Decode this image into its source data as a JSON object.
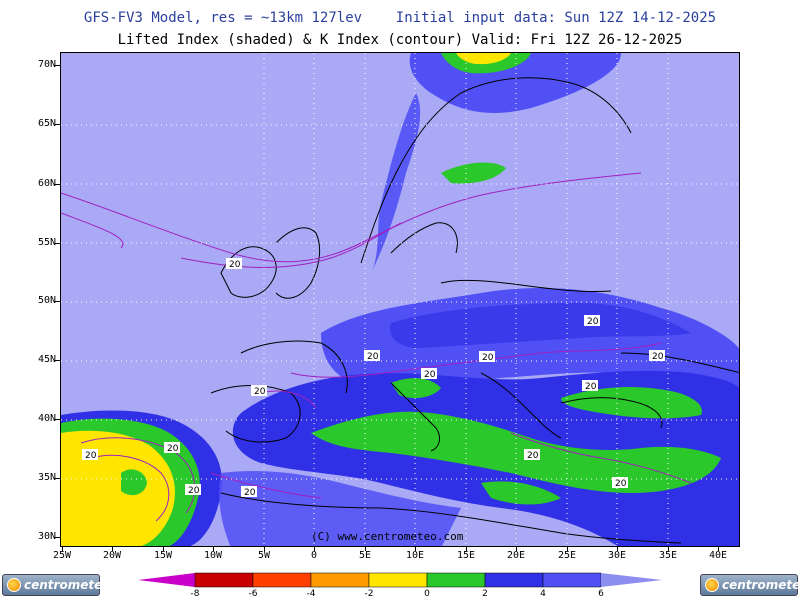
{
  "header": {
    "line1": "GFS-FV3 Model, res = ~13km 127lev    Initial input data: Sun 12Z 14-12-2025",
    "line2": "Lifted Index (shaded) & K Index (contour) Valid: Fri 12Z 26-12-2025"
  },
  "map": {
    "latitude_labels": [
      "70N",
      "65N",
      "60N",
      "55N",
      "50N",
      "45N",
      "40N",
      "35N",
      "30N"
    ],
    "longitude_labels": [
      "25W",
      "20W",
      "15W",
      "10W",
      "5W",
      "0",
      "5E",
      "10E",
      "15E",
      "20E",
      "25E",
      "30E",
      "35E",
      "40E"
    ],
    "contour_label": "20",
    "copyright": "(C) www.centrometeo.com",
    "background_color": "#a9a9f5"
  },
  "legend": {
    "ticks": [
      "-8",
      "-6",
      "-4",
      "-2",
      "0",
      "2",
      "4",
      "6"
    ],
    "colors": [
      "#c800c8",
      "#c80000",
      "#ff4000",
      "#ff9a00",
      "#ffe600",
      "#2ac82a",
      "#3030e6",
      "#5050f5",
      "#8e8ef0"
    ]
  },
  "branding": {
    "logo_text": "centrometeo",
    "icons": [
      "centrometeo-logo-left",
      "centrometeo-logo-right"
    ]
  }
}
